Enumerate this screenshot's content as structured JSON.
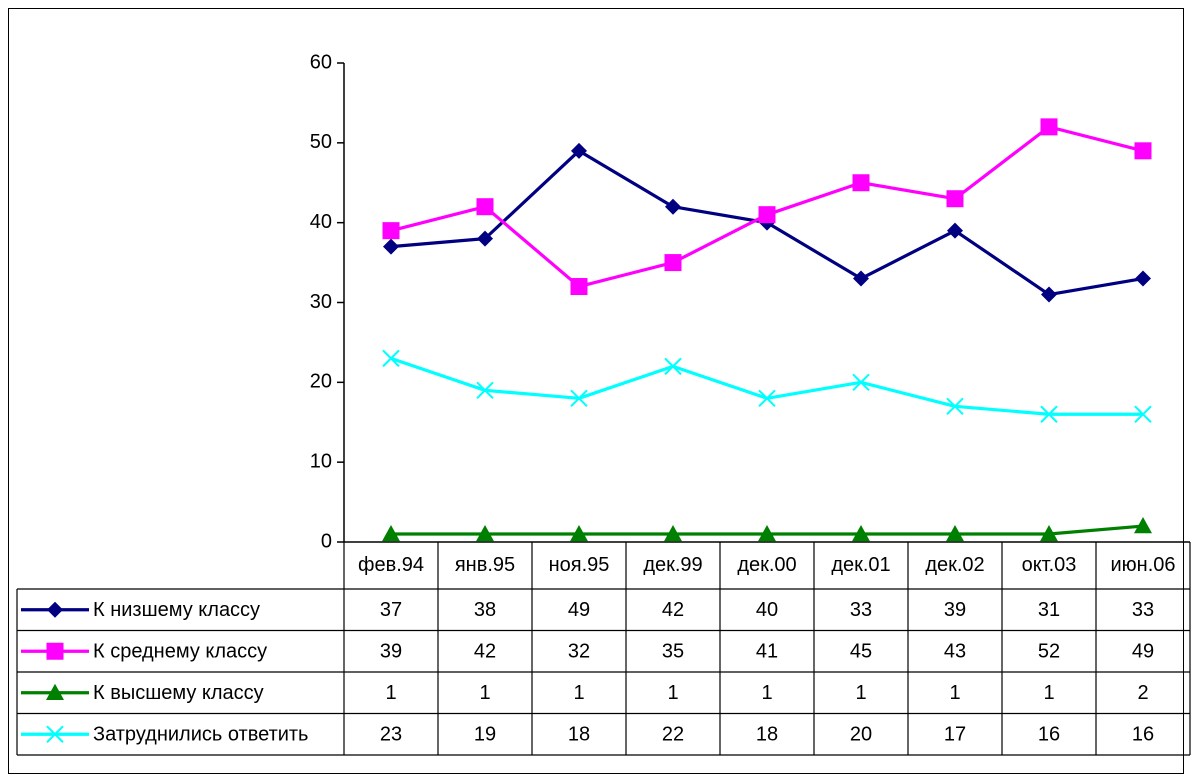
{
  "chart_data": {
    "type": "line",
    "title": "",
    "xlabel": "",
    "ylabel": "",
    "ylim": [
      0,
      60
    ],
    "yticks": [
      "0",
      "10",
      "20",
      "30",
      "40",
      "50",
      "60"
    ],
    "grid": false,
    "legend": "data-table",
    "categories": [
      "фев.94",
      "янв.95",
      "ноя.95",
      "дек.99",
      "дек.00",
      "дек.01",
      "дек.02",
      "окт.03",
      "июн.06"
    ],
    "series": [
      {
        "name": "К низшему классу",
        "values": [
          37,
          38,
          49,
          42,
          40,
          33,
          39,
          31,
          33
        ],
        "color": "#000080",
        "marker": "diamond"
      },
      {
        "name": "К среднему классу",
        "values": [
          39,
          42,
          32,
          35,
          41,
          45,
          43,
          52,
          49
        ],
        "color": "#ff00ff",
        "marker": "square"
      },
      {
        "name": "К высшему классу",
        "values": [
          1,
          1,
          1,
          1,
          1,
          1,
          1,
          1,
          2
        ],
        "color": "#008000",
        "marker": "triangle"
      },
      {
        "name": "Затруднились ответить",
        "values": [
          23,
          19,
          18,
          22,
          18,
          20,
          17,
          16,
          16
        ],
        "color": "#00ffff",
        "marker": "x"
      }
    ]
  }
}
